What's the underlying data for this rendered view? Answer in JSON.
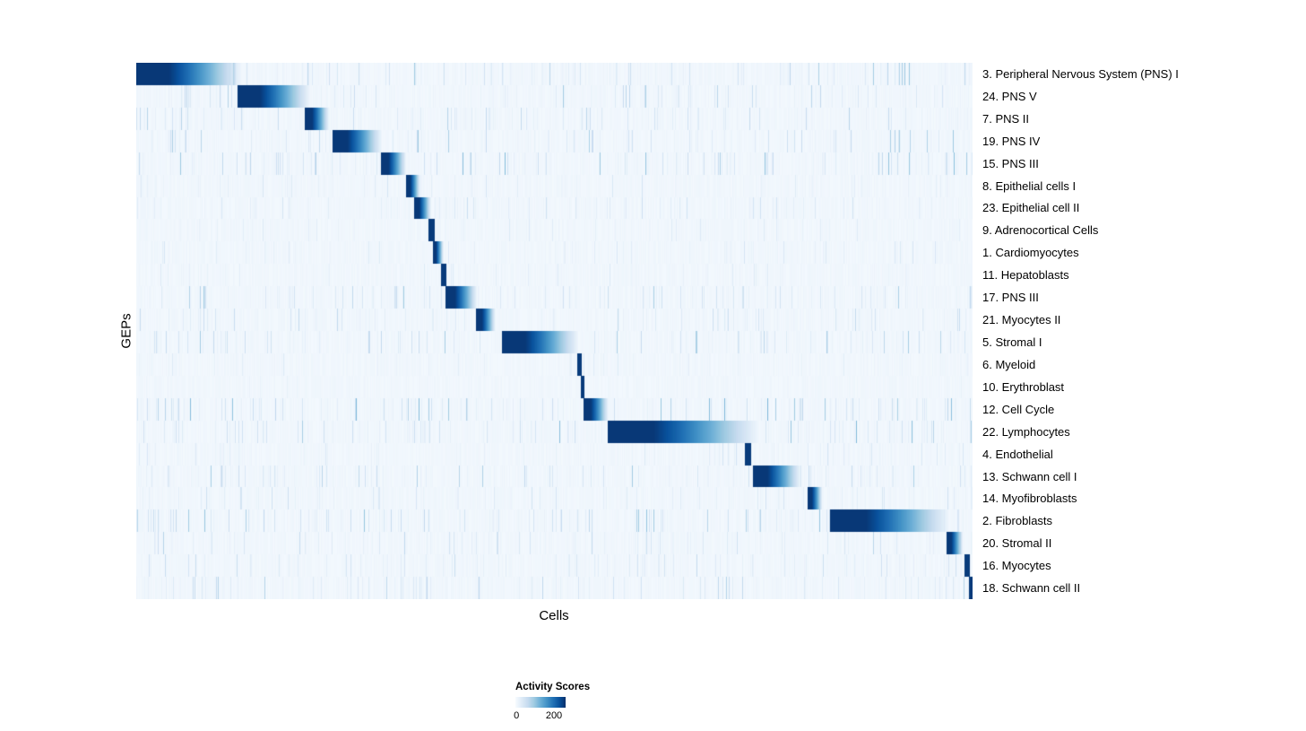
{
  "chart_data": {
    "type": "heatmap",
    "title": "",
    "xlabel": "Cells",
    "ylabel": "GEPs",
    "legend": {
      "title": "Activity Scores",
      "min": 0,
      "max": 200,
      "min_label": "0",
      "max_label": "200"
    },
    "colors": {
      "background": "#ffffff",
      "heatmap_min": "#f7fbff",
      "heatmap_max": "#08306b"
    },
    "colormap_stops": [
      "#f7fbff",
      "#deebf7",
      "#c6dbef",
      "#9ecae1",
      "#6baed6",
      "#4292c6",
      "#2171b5",
      "#08519c",
      "#08306b"
    ],
    "rows": [
      {
        "label": "3. Peripheral Nervous System (PNS) I",
        "block_start": 0.0,
        "block_end": 0.125,
        "noise": 0.45
      },
      {
        "label": "24. PNS V",
        "block_start": 0.121,
        "block_end": 0.207,
        "noise": 0.4
      },
      {
        "label": "7. PNS II",
        "block_start": 0.201,
        "block_end": 0.23,
        "noise": 0.35
      },
      {
        "label": "19. PNS IV",
        "block_start": 0.234,
        "block_end": 0.293,
        "noise": 0.45
      },
      {
        "label": "15. PNS III",
        "block_start": 0.292,
        "block_end": 0.322,
        "noise": 0.5
      },
      {
        "label": "8. Epithelial cells I",
        "block_start": 0.322,
        "block_end": 0.339,
        "noise": 0.2
      },
      {
        "label": "23. Epithelial cell II",
        "block_start": 0.332,
        "block_end": 0.352,
        "noise": 0.25
      },
      {
        "label": "9. Adrenocortical Cells",
        "block_start": 0.349,
        "block_end": 0.356,
        "noise": 0.15
      },
      {
        "label": "1. Cardiomyocytes",
        "block_start": 0.354,
        "block_end": 0.367,
        "noise": 0.2
      },
      {
        "label": "11. Hepatoblasts",
        "block_start": 0.364,
        "block_end": 0.37,
        "noise": 0.15
      },
      {
        "label": "17. PNS III",
        "block_start": 0.369,
        "block_end": 0.407,
        "noise": 0.45
      },
      {
        "label": "21. Myocytes II",
        "block_start": 0.406,
        "block_end": 0.429,
        "noise": 0.3
      },
      {
        "label": "5. Stromal I",
        "block_start": 0.437,
        "block_end": 0.528,
        "noise": 0.4
      },
      {
        "label": "6. Myeloid",
        "block_start": 0.527,
        "block_end": 0.532,
        "noise": 0.15
      },
      {
        "label": "10. Erythroblast",
        "block_start": 0.531,
        "block_end": 0.535,
        "noise": 0.1
      },
      {
        "label": "12. Cell Cycle",
        "block_start": 0.534,
        "block_end": 0.564,
        "noise": 0.55
      },
      {
        "label": "22. Lymphocytes",
        "block_start": 0.563,
        "block_end": 0.743,
        "noise": 0.5
      },
      {
        "label": "4. Endothelial",
        "block_start": 0.727,
        "block_end": 0.735,
        "noise": 0.2
      },
      {
        "label": "13. Schwann cell I",
        "block_start": 0.737,
        "block_end": 0.794,
        "noise": 0.4
      },
      {
        "label": "14. Myofibroblasts",
        "block_start": 0.802,
        "block_end": 0.82,
        "noise": 0.25
      },
      {
        "label": "2. Fibroblasts",
        "block_start": 0.829,
        "block_end": 0.971,
        "noise": 0.45
      },
      {
        "label": "20. Stromal II",
        "block_start": 0.968,
        "block_end": 0.988,
        "noise": 0.35
      },
      {
        "label": "16. Myocytes",
        "block_start": 0.99,
        "block_end": 0.996,
        "noise": 0.3
      },
      {
        "label": "18. Schwann cell II",
        "block_start": 0.995,
        "block_end": 1.0,
        "noise": 0.35
      }
    ]
  }
}
